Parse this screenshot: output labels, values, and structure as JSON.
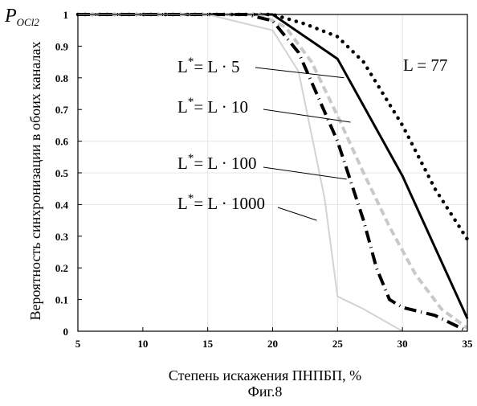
{
  "chart_data": {
    "type": "line",
    "title": "",
    "xlabel": "Степень искажения ПНПБП,   %",
    "ylabel": "Вероятность синхронизации в обоих каналах",
    "y_symbol": "P",
    "y_symbol_sub": "OCl2",
    "caption": "Фиг.8",
    "xlim": [
      5,
      35
    ],
    "ylim": [
      0,
      1
    ],
    "x_ticks": [
      5,
      10,
      15,
      20,
      25,
      30,
      35
    ],
    "y_ticks": [
      0,
      0.1,
      0.2,
      0.3,
      0.4,
      0.5,
      0.6,
      0.7,
      0.8,
      0.9,
      1
    ],
    "x_tick_labels": [
      "5",
      "10",
      "15",
      "20",
      "25",
      "30",
      "35"
    ],
    "y_tick_labels": [
      "0",
      "0.1",
      "0.2",
      "0.3",
      "0.4",
      "0.5",
      "0.6",
      "0.7",
      "0.8",
      "0.9",
      "1"
    ],
    "grid": "faint, x = 15, 20, 25, 30 and y = 0.4, 0.5, 0.6",
    "series": [
      {
        "label_main": "L = 77",
        "label_sup": "",
        "style": "dotted",
        "color": "#000000",
        "width": 4.5,
        "x": [
          5,
          20,
          22.5,
          25,
          27,
          30,
          32.5,
          35
        ],
        "y": [
          1.0,
          1.0,
          0.97,
          0.93,
          0.85,
          0.65,
          0.45,
          0.29
        ]
      },
      {
        "label_main": "= L · 5",
        "label_sup": "*",
        "style": "solid",
        "color": "#000000",
        "width": 3,
        "x": [
          5,
          20,
          25,
          30,
          35
        ],
        "y": [
          1.0,
          1.0,
          0.86,
          0.49,
          0.04
        ]
      },
      {
        "label_main": "= L · 10",
        "label_sup": "*",
        "style": "dashed",
        "color": "#c9c9c9",
        "width": 4,
        "x": [
          5,
          19,
          21,
          23,
          25,
          27,
          29,
          31,
          33,
          35
        ],
        "y": [
          1.0,
          1.0,
          0.96,
          0.85,
          0.68,
          0.5,
          0.33,
          0.18,
          0.07,
          0.01
        ]
      },
      {
        "label_main": "= L · 100",
        "label_sup": "*",
        "style": "dashdot",
        "color": "#000000",
        "width": 4,
        "x": [
          5,
          18,
          20,
          22,
          25,
          27,
          28,
          29,
          30,
          32.5,
          35
        ],
        "y": [
          1.0,
          1.0,
          0.98,
          0.88,
          0.6,
          0.35,
          0.2,
          0.1,
          0.075,
          0.05,
          0.0
        ]
      },
      {
        "label_main": "= L · 1000",
        "label_sup": "*",
        "style": "solid",
        "color": "#d3d3d3",
        "width": 2,
        "x": [
          5,
          15,
          20,
          22,
          24,
          25,
          27,
          30
        ],
        "y": [
          1.0,
          1.0,
          0.95,
          0.82,
          0.42,
          0.11,
          0.07,
          0.0
        ]
      }
    ]
  },
  "colors": {
    "axis": "#000000",
    "grid": "#e4e4e4",
    "background": "#ffffff"
  }
}
